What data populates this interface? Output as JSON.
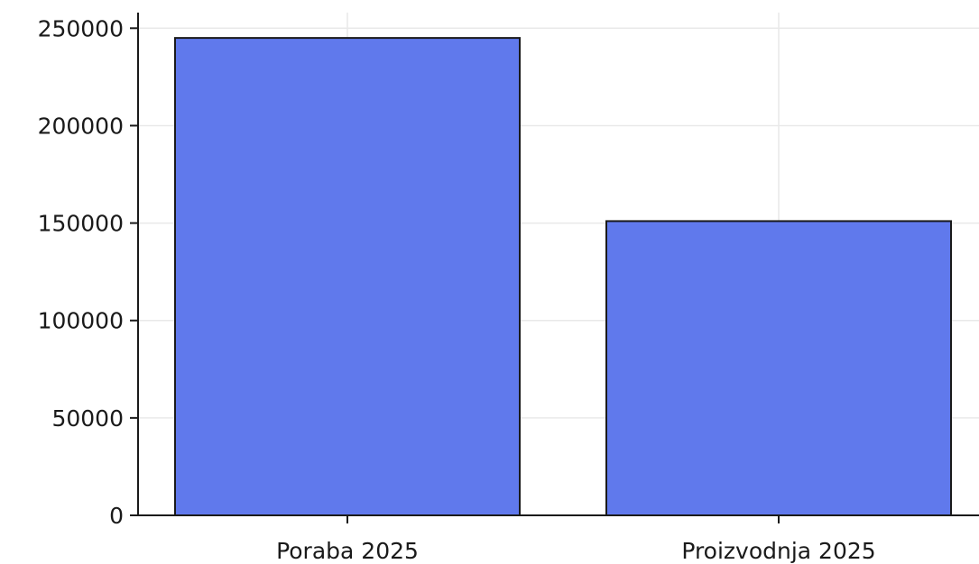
{
  "chart_data": {
    "type": "bar",
    "categories": [
      "Poraba 2025",
      "Proizvodnja 2025"
    ],
    "values": [
      245000,
      151000
    ],
    "title": "",
    "xlabel": "",
    "ylabel": "",
    "ylim": [
      0,
      258000
    ],
    "yticks": [
      0,
      50000,
      100000,
      150000,
      200000,
      250000
    ],
    "ytick_labels": [
      "0",
      "50000",
      "100000",
      "150000",
      "200000",
      "250000"
    ],
    "bar_color": "#6079ec",
    "edge_color": "#1a1a1a",
    "grid": true
  }
}
